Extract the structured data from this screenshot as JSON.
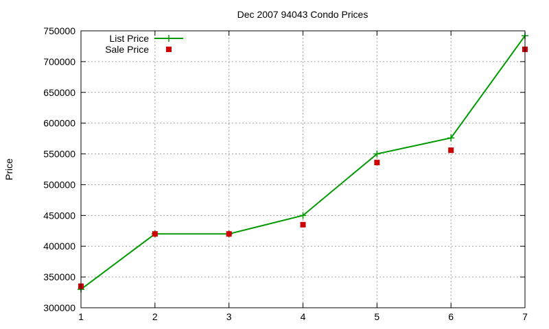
{
  "chart_data": {
    "type": "line",
    "title": "Dec 2007 94043 Condo Prices",
    "xlabel": "",
    "ylabel": "Price",
    "x": [
      1,
      2,
      3,
      4,
      5,
      6,
      7
    ],
    "xlim": [
      1,
      7
    ],
    "ylim": [
      300000,
      750000
    ],
    "x_ticks": [
      "1",
      "2",
      "3",
      "4",
      "5",
      "6",
      "7"
    ],
    "y_ticks": [
      "300000",
      "350000",
      "400000",
      "450000",
      "500000",
      "550000",
      "600000",
      "650000",
      "700000",
      "750000"
    ],
    "grid": true,
    "legend_position": "top-left",
    "series": [
      {
        "name": "List Price",
        "style": "line-with-plus-markers",
        "color": "#009900",
        "values": [
          330000,
          420000,
          420000,
          450000,
          550000,
          576000,
          742000
        ]
      },
      {
        "name": "Sale Price",
        "style": "square-markers",
        "color": "#cc0000",
        "values": [
          335000,
          420000,
          420000,
          435000,
          536000,
          556000,
          720000
        ]
      }
    ]
  }
}
